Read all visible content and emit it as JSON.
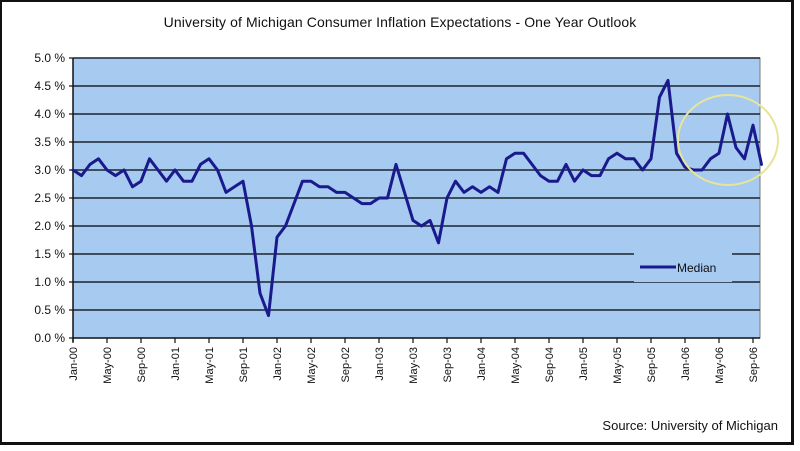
{
  "chart_data": {
    "type": "line",
    "title": "University of Michigan Consumer Inflation Expectations - One Year Outlook",
    "xlabel": "",
    "ylabel": "",
    "source": "Source:  University of Michigan",
    "ylim": [
      0,
      5
    ],
    "y_ticks": [
      "0.0 %",
      "0.5 %",
      "1.0 %",
      "1.5 %",
      "2.0 %",
      "2.5 %",
      "3.0 %",
      "3.5 %",
      "4.0 %",
      "4.5 %",
      "5.0 %"
    ],
    "x_tick_labels": [
      "Jan-00",
      "May-00",
      "Sep-00",
      "Jan-01",
      "May-01",
      "Sep-01",
      "Jan-02",
      "May-02",
      "Sep-02",
      "Jan-03",
      "May-03",
      "Sep-03",
      "Jan-04",
      "May-04",
      "Sep-04",
      "Jan-05",
      "May-05",
      "Sep-05",
      "Jan-06",
      "May-06",
      "Sep-06"
    ],
    "x_tick_interval_months": 4,
    "grid": true,
    "legend": {
      "position": "bottom-right",
      "entries": [
        "Median"
      ]
    },
    "annotation": "yellow circle highlighting 2006 peaks",
    "colors": {
      "line": "#1a1a8c",
      "plot_bg": "#a6caf0",
      "annotation": "#e8e49a"
    },
    "series": [
      {
        "name": "Median",
        "start": "Jan-00",
        "frequency": "monthly",
        "values": [
          3.0,
          2.9,
          3.1,
          3.2,
          3.0,
          2.9,
          3.0,
          2.7,
          2.8,
          3.2,
          3.0,
          2.8,
          3.0,
          2.8,
          2.8,
          3.1,
          3.2,
          3.0,
          2.6,
          2.7,
          2.8,
          2.0,
          0.8,
          0.4,
          1.8,
          2.0,
          2.4,
          2.8,
          2.8,
          2.7,
          2.7,
          2.6,
          2.6,
          2.5,
          2.4,
          2.4,
          2.5,
          2.5,
          3.1,
          2.6,
          2.1,
          2.0,
          2.1,
          1.7,
          2.5,
          2.8,
          2.6,
          2.7,
          2.6,
          2.7,
          2.6,
          3.2,
          3.3,
          3.3,
          3.1,
          2.9,
          2.8,
          2.8,
          3.1,
          2.8,
          3.0,
          2.9,
          2.9,
          3.2,
          3.3,
          3.2,
          3.2,
          3.0,
          3.2,
          4.3,
          4.6,
          3.3,
          3.05,
          3.0,
          3.0,
          3.2,
          3.3,
          4.0,
          3.4,
          3.2,
          3.8,
          3.1
        ]
      }
    ]
  }
}
